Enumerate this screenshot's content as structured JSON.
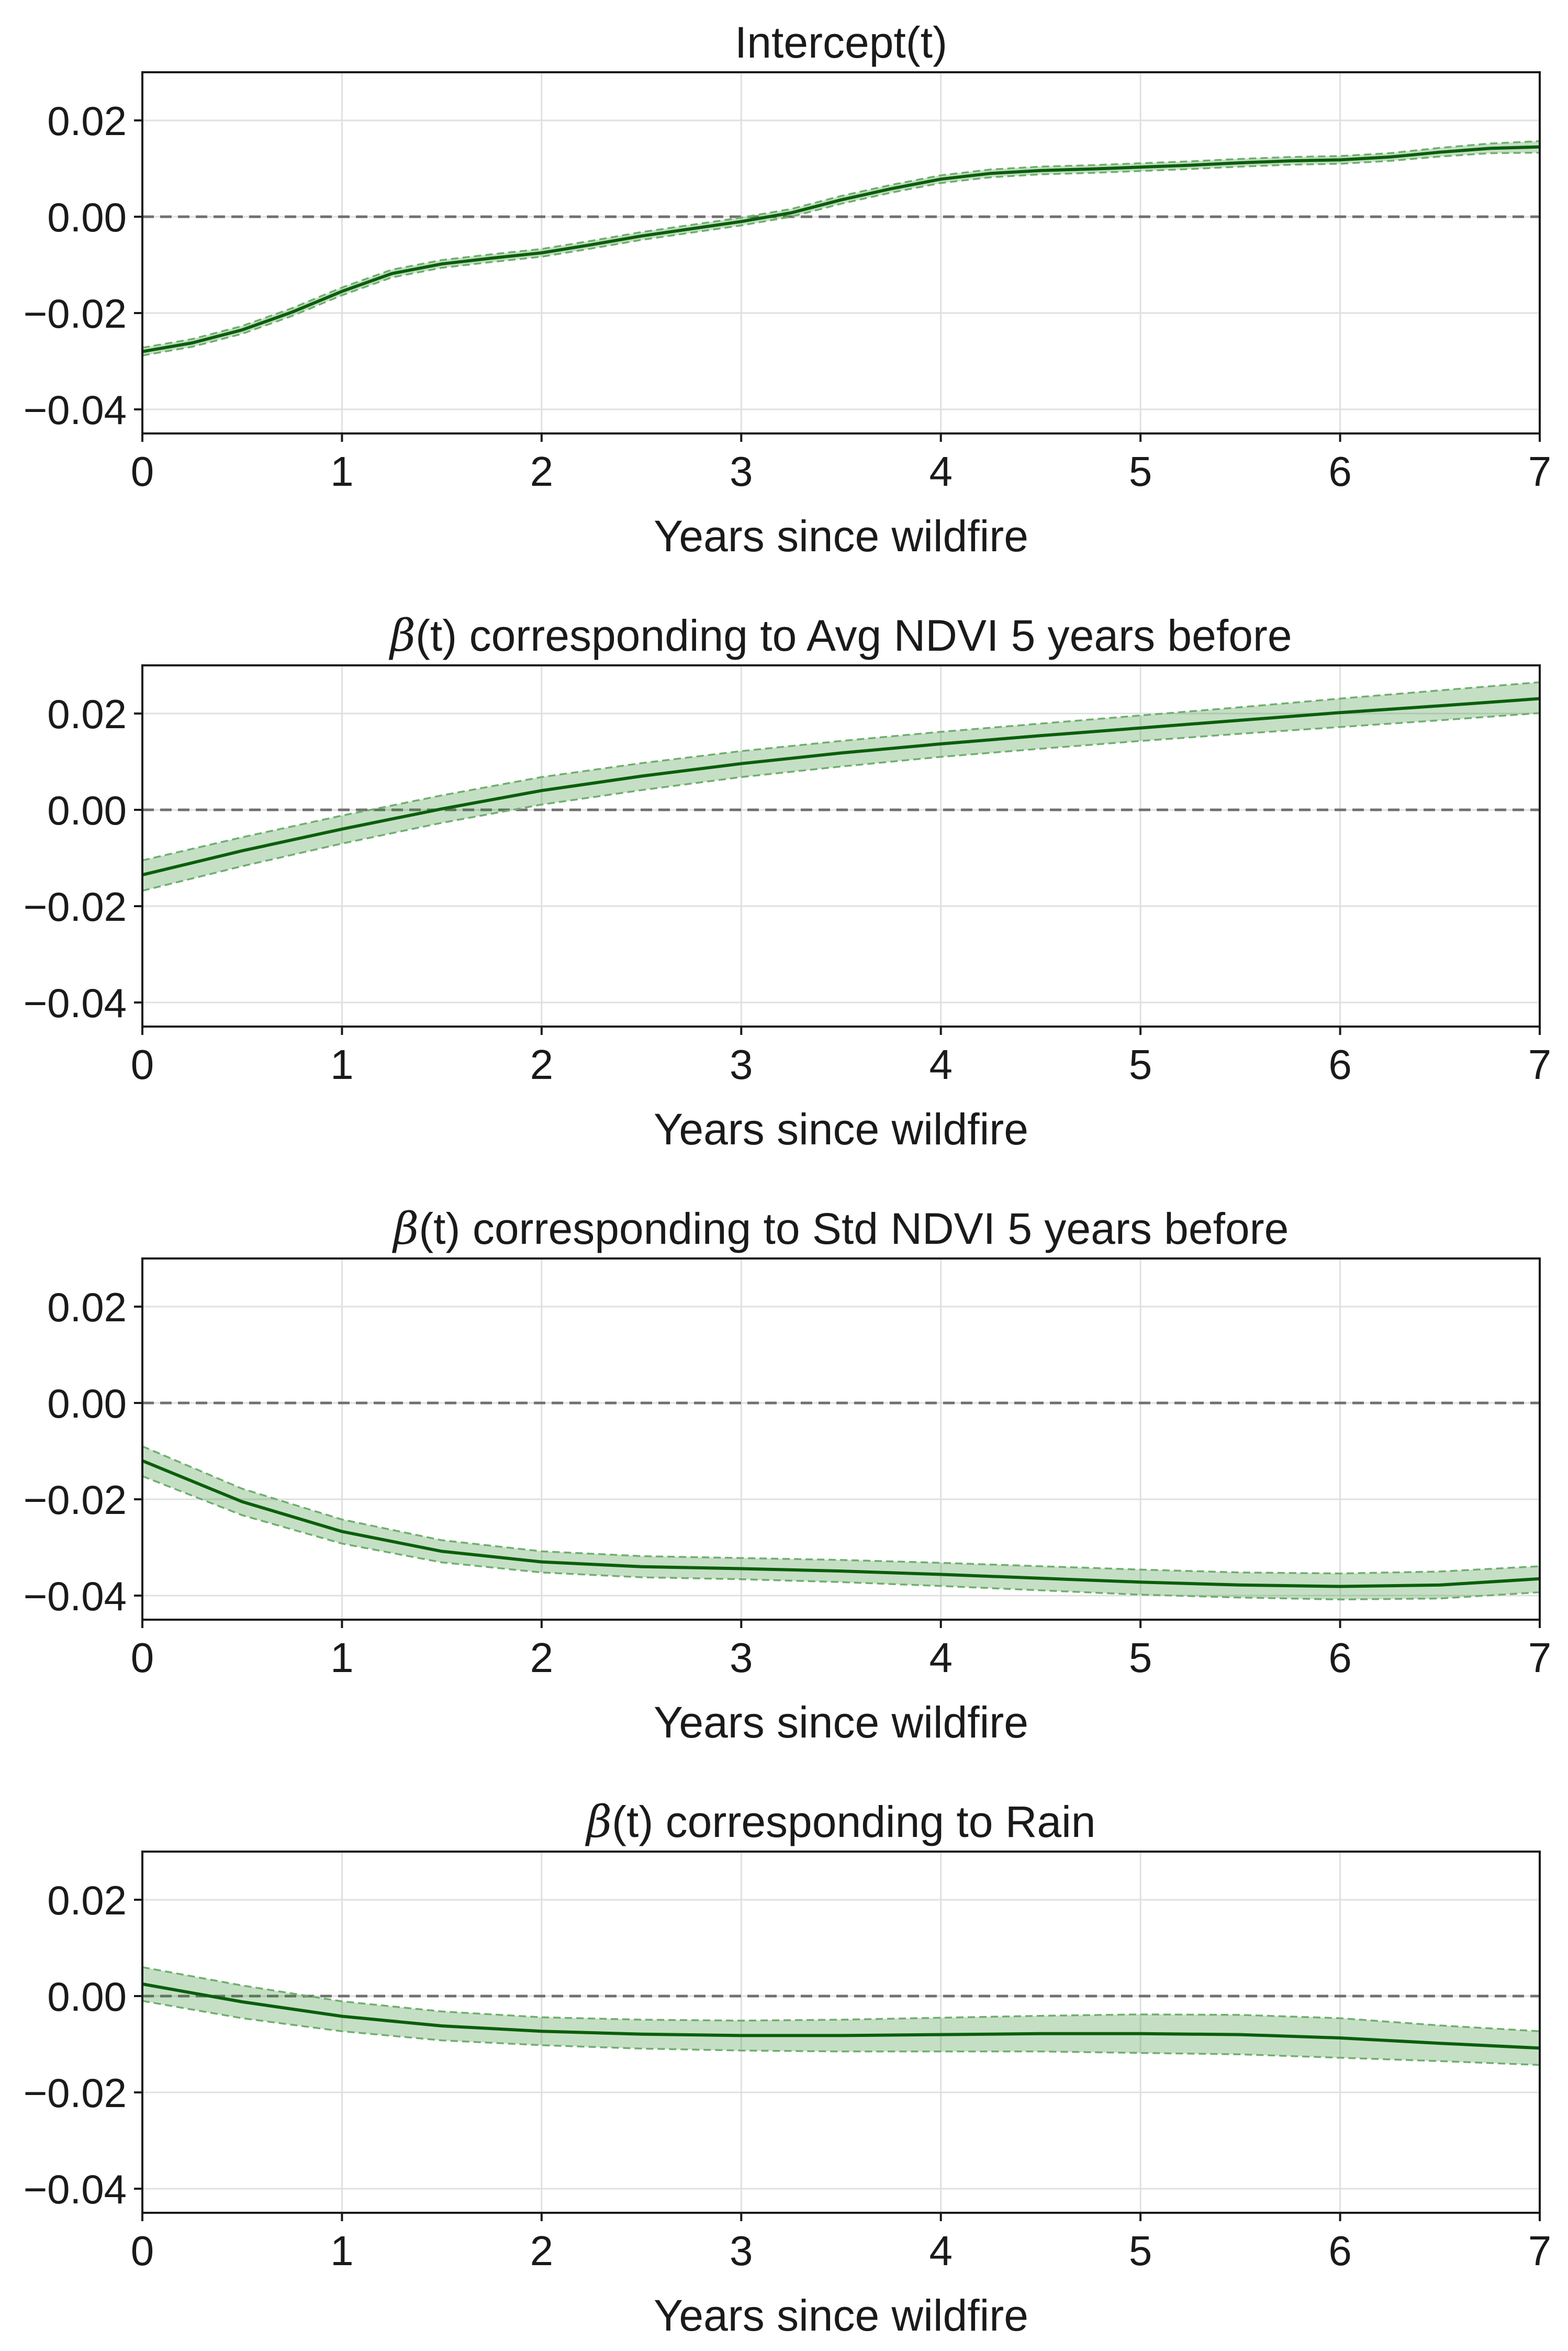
{
  "chart_data": [
    {
      "type": "line",
      "title": "Intercept(t)",
      "title_parts": {
        "symbol": "",
        "paren": "",
        "text": "Intercept(t)"
      },
      "xlabel": "Years since wildfire",
      "ylabel": "",
      "xlim": [
        0,
        7
      ],
      "ylim": [
        -0.045,
        0.03
      ],
      "xticks": [
        0,
        1,
        2,
        3,
        4,
        5,
        6,
        7
      ],
      "xtick_labels": [
        "0",
        "1",
        "2",
        "3",
        "4",
        "5",
        "6",
        "7"
      ],
      "yticks": [
        0.02,
        0.0,
        -0.02,
        -0.04
      ],
      "ytick_labels": [
        "0.02",
        "0.00",
        "−0.02",
        "−0.04"
      ],
      "grid": true,
      "reference_line": 0,
      "x": [
        0,
        0.25,
        0.5,
        0.75,
        1.0,
        1.25,
        1.5,
        1.75,
        2.0,
        2.25,
        2.5,
        2.75,
        3.0,
        3.25,
        3.5,
        3.75,
        4.0,
        4.25,
        4.5,
        4.75,
        5.0,
        5.25,
        5.5,
        5.75,
        6.0,
        6.25,
        6.5,
        6.75,
        7.0
      ],
      "series": [
        {
          "name": "estimate",
          "values": [
            -0.028,
            -0.0262,
            -0.0235,
            -0.0198,
            -0.0155,
            -0.0118,
            -0.0098,
            -0.0086,
            -0.0075,
            -0.0058,
            -0.004,
            -0.0025,
            -0.001,
            0.0008,
            0.0035,
            0.0058,
            0.0078,
            0.009,
            0.0096,
            0.0099,
            0.0103,
            0.0107,
            0.0112,
            0.0116,
            0.0118,
            0.0124,
            0.0134,
            0.0142,
            0.0145
          ]
        },
        {
          "name": "upper",
          "values": [
            -0.0272,
            -0.0254,
            -0.0227,
            -0.019,
            -0.0147,
            -0.011,
            -0.009,
            -0.0078,
            -0.0067,
            -0.005,
            -0.0032,
            -0.0017,
            -0.0002,
            0.0016,
            0.0043,
            0.0066,
            0.0086,
            0.0098,
            0.0104,
            0.0107,
            0.0111,
            0.0115,
            0.012,
            0.0124,
            0.0126,
            0.0132,
            0.0143,
            0.0152,
            0.0157
          ]
        },
        {
          "name": "lower",
          "values": [
            -0.0288,
            -0.027,
            -0.0243,
            -0.0206,
            -0.0163,
            -0.0126,
            -0.0106,
            -0.0094,
            -0.0083,
            -0.0066,
            -0.0048,
            -0.0033,
            -0.0018,
            0.0,
            0.0027,
            0.005,
            0.007,
            0.0082,
            0.0088,
            0.0091,
            0.0095,
            0.0099,
            0.0104,
            0.0108,
            0.011,
            0.0116,
            0.0125,
            0.0132,
            0.0133
          ]
        }
      ]
    },
    {
      "type": "line",
      "title": "β(t) corresponding to Avg NDVI 5 years before",
      "title_parts": {
        "symbol": "β",
        "paren": "(t)",
        "text": " corresponding to Avg NDVI 5 years before"
      },
      "xlabel": "Years since wildfire",
      "ylabel": "",
      "xlim": [
        0,
        7
      ],
      "ylim": [
        -0.045,
        0.03
      ],
      "xticks": [
        0,
        1,
        2,
        3,
        4,
        5,
        6,
        7
      ],
      "xtick_labels": [
        "0",
        "1",
        "2",
        "3",
        "4",
        "5",
        "6",
        "7"
      ],
      "yticks": [
        0.02,
        0.0,
        -0.02,
        -0.04
      ],
      "ytick_labels": [
        "0.02",
        "0.00",
        "−0.02",
        "−0.04"
      ],
      "grid": true,
      "reference_line": 0,
      "x": [
        0,
        0.5,
        1.0,
        1.5,
        2.0,
        2.5,
        3.0,
        3.5,
        4.0,
        4.5,
        5.0,
        5.5,
        6.0,
        6.5,
        7.0
      ],
      "series": [
        {
          "name": "estimate",
          "values": [
            -0.0135,
            -0.0085,
            -0.004,
            0.0002,
            0.004,
            0.007,
            0.0096,
            0.0118,
            0.0137,
            0.0154,
            0.017,
            0.0186,
            0.0202,
            0.0216,
            0.0231
          ]
        },
        {
          "name": "upper",
          "values": [
            -0.0105,
            -0.0057,
            -0.0012,
            0.003,
            0.0068,
            0.0097,
            0.0122,
            0.0143,
            0.0162,
            0.0179,
            0.0196,
            0.0213,
            0.0231,
            0.0248,
            0.0265
          ]
        },
        {
          "name": "lower",
          "values": [
            -0.0168,
            -0.0117,
            -0.007,
            -0.0027,
            0.0011,
            0.0041,
            0.0068,
            0.009,
            0.011,
            0.0127,
            0.0143,
            0.0158,
            0.0172,
            0.0186,
            0.0201
          ]
        }
      ]
    },
    {
      "type": "line",
      "title": "β(t) corresponding to Std NDVI 5 years before",
      "title_parts": {
        "symbol": "β",
        "paren": "(t)",
        "text": " corresponding to Std NDVI 5 years before"
      },
      "xlabel": "Years since wildfire",
      "ylabel": "",
      "xlim": [
        0,
        7
      ],
      "ylim": [
        -0.045,
        0.03
      ],
      "xticks": [
        0,
        1,
        2,
        3,
        4,
        5,
        6,
        7
      ],
      "xtick_labels": [
        "0",
        "1",
        "2",
        "3",
        "4",
        "5",
        "6",
        "7"
      ],
      "yticks": [
        0.02,
        0.0,
        -0.02,
        -0.04
      ],
      "ytick_labels": [
        "0.02",
        "0.00",
        "−0.02",
        "−0.04"
      ],
      "grid": true,
      "reference_line": 0,
      "x": [
        0,
        0.5,
        1.0,
        1.5,
        2.0,
        2.5,
        3.0,
        3.5,
        4.0,
        4.5,
        5.0,
        5.5,
        6.0,
        6.5,
        7.0
      ],
      "series": [
        {
          "name": "estimate",
          "values": [
            -0.012,
            -0.0205,
            -0.0267,
            -0.0308,
            -0.033,
            -0.034,
            -0.0344,
            -0.0349,
            -0.0356,
            -0.0364,
            -0.0372,
            -0.0378,
            -0.0381,
            -0.0378,
            -0.0365
          ]
        },
        {
          "name": "upper",
          "values": [
            -0.009,
            -0.0178,
            -0.0242,
            -0.0285,
            -0.0308,
            -0.0318,
            -0.0322,
            -0.0326,
            -0.0332,
            -0.0339,
            -0.0346,
            -0.0352,
            -0.0354,
            -0.035,
            -0.0339
          ]
        },
        {
          "name": "lower",
          "values": [
            -0.0152,
            -0.0233,
            -0.0292,
            -0.0331,
            -0.0352,
            -0.0362,
            -0.0366,
            -0.0372,
            -0.038,
            -0.0389,
            -0.0398,
            -0.0404,
            -0.0408,
            -0.0406,
            -0.0393
          ]
        }
      ]
    },
    {
      "type": "line",
      "title": "β(t) corresponding to Rain",
      "title_parts": {
        "symbol": "β",
        "paren": "(t)",
        "text": " corresponding to Rain"
      },
      "xlabel": "Years since wildfire",
      "ylabel": "",
      "xlim": [
        0,
        7
      ],
      "ylim": [
        -0.045,
        0.03
      ],
      "xticks": [
        0,
        1,
        2,
        3,
        4,
        5,
        6,
        7
      ],
      "xtick_labels": [
        "0",
        "1",
        "2",
        "3",
        "4",
        "5",
        "6",
        "7"
      ],
      "yticks": [
        0.02,
        0.0,
        -0.02,
        -0.04
      ],
      "ytick_labels": [
        "0.02",
        "0.00",
        "−0.02",
        "−0.04"
      ],
      "grid": true,
      "reference_line": 0,
      "x": [
        0,
        0.5,
        1.0,
        1.5,
        2.0,
        2.5,
        3.0,
        3.5,
        4.0,
        4.5,
        5.0,
        5.5,
        6.0,
        6.5,
        7.0
      ],
      "series": [
        {
          "name": "estimate",
          "values": [
            0.0025,
            -0.0012,
            -0.0042,
            -0.0062,
            -0.0073,
            -0.0079,
            -0.0082,
            -0.0082,
            -0.008,
            -0.0078,
            -0.0078,
            -0.008,
            -0.0087,
            -0.0098,
            -0.0108
          ]
        },
        {
          "name": "upper",
          "values": [
            0.006,
            0.0022,
            -0.0011,
            -0.0032,
            -0.0044,
            -0.0049,
            -0.0051,
            -0.0049,
            -0.0045,
            -0.0041,
            -0.0038,
            -0.0039,
            -0.0046,
            -0.0061,
            -0.0073
          ]
        },
        {
          "name": "lower",
          "values": [
            -0.001,
            -0.0046,
            -0.0073,
            -0.0092,
            -0.0102,
            -0.0109,
            -0.0113,
            -0.0115,
            -0.0115,
            -0.0115,
            -0.0118,
            -0.0121,
            -0.0128,
            -0.0135,
            -0.0143
          ]
        }
      ]
    }
  ],
  "colors": {
    "line": "#0b5e0b",
    "band_fill": "#2e8b2e",
    "band_edge": "#6fae6f",
    "reference": "#707070",
    "grid": "#e0e0e0",
    "axis": "#1a1a1a"
  }
}
